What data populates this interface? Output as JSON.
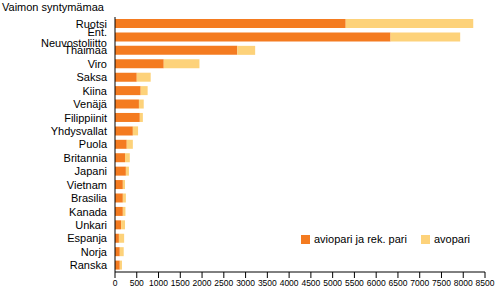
{
  "chart_data": {
    "type": "bar",
    "title": "Vaimon syntymämaa",
    "orientation": "horizontal",
    "stacked": true,
    "grid": false,
    "legend": "lower right",
    "categories": [
      "Ruotsi",
      "Ent. Neuvostoliitto",
      "Thaimaa",
      "Viro",
      "Saksa",
      "Kiina",
      "Venäjä",
      "Filippiinit",
      "Yhdysvallat",
      "Puola",
      "Britannia",
      "Japani",
      "Vietnam",
      "Brasilia",
      "Kanada",
      "Unkari",
      "Espanja",
      "Norja",
      "Ranska"
    ],
    "series": [
      {
        "name": "aviopari ja rek. pari",
        "color": "#f47b20",
        "values": [
          5300,
          6330,
          2810,
          1120,
          500,
          590,
          550,
          570,
          410,
          270,
          230,
          250,
          180,
          180,
          180,
          140,
          90,
          110,
          110
        ]
      },
      {
        "name": "avopari",
        "color": "#fdd27a",
        "values": [
          2930,
          1600,
          410,
          820,
          320,
          160,
          110,
          70,
          120,
          140,
          110,
          70,
          50,
          70,
          60,
          90,
          120,
          90,
          50
        ]
      }
    ],
    "xlim": [
      0,
      8500
    ],
    "xticks": [
      0,
      500,
      1000,
      1500,
      2000,
      2500,
      3000,
      3500,
      4000,
      4500,
      5000,
      5500,
      6000,
      6500,
      7000,
      7500,
      8000,
      8500
    ]
  }
}
